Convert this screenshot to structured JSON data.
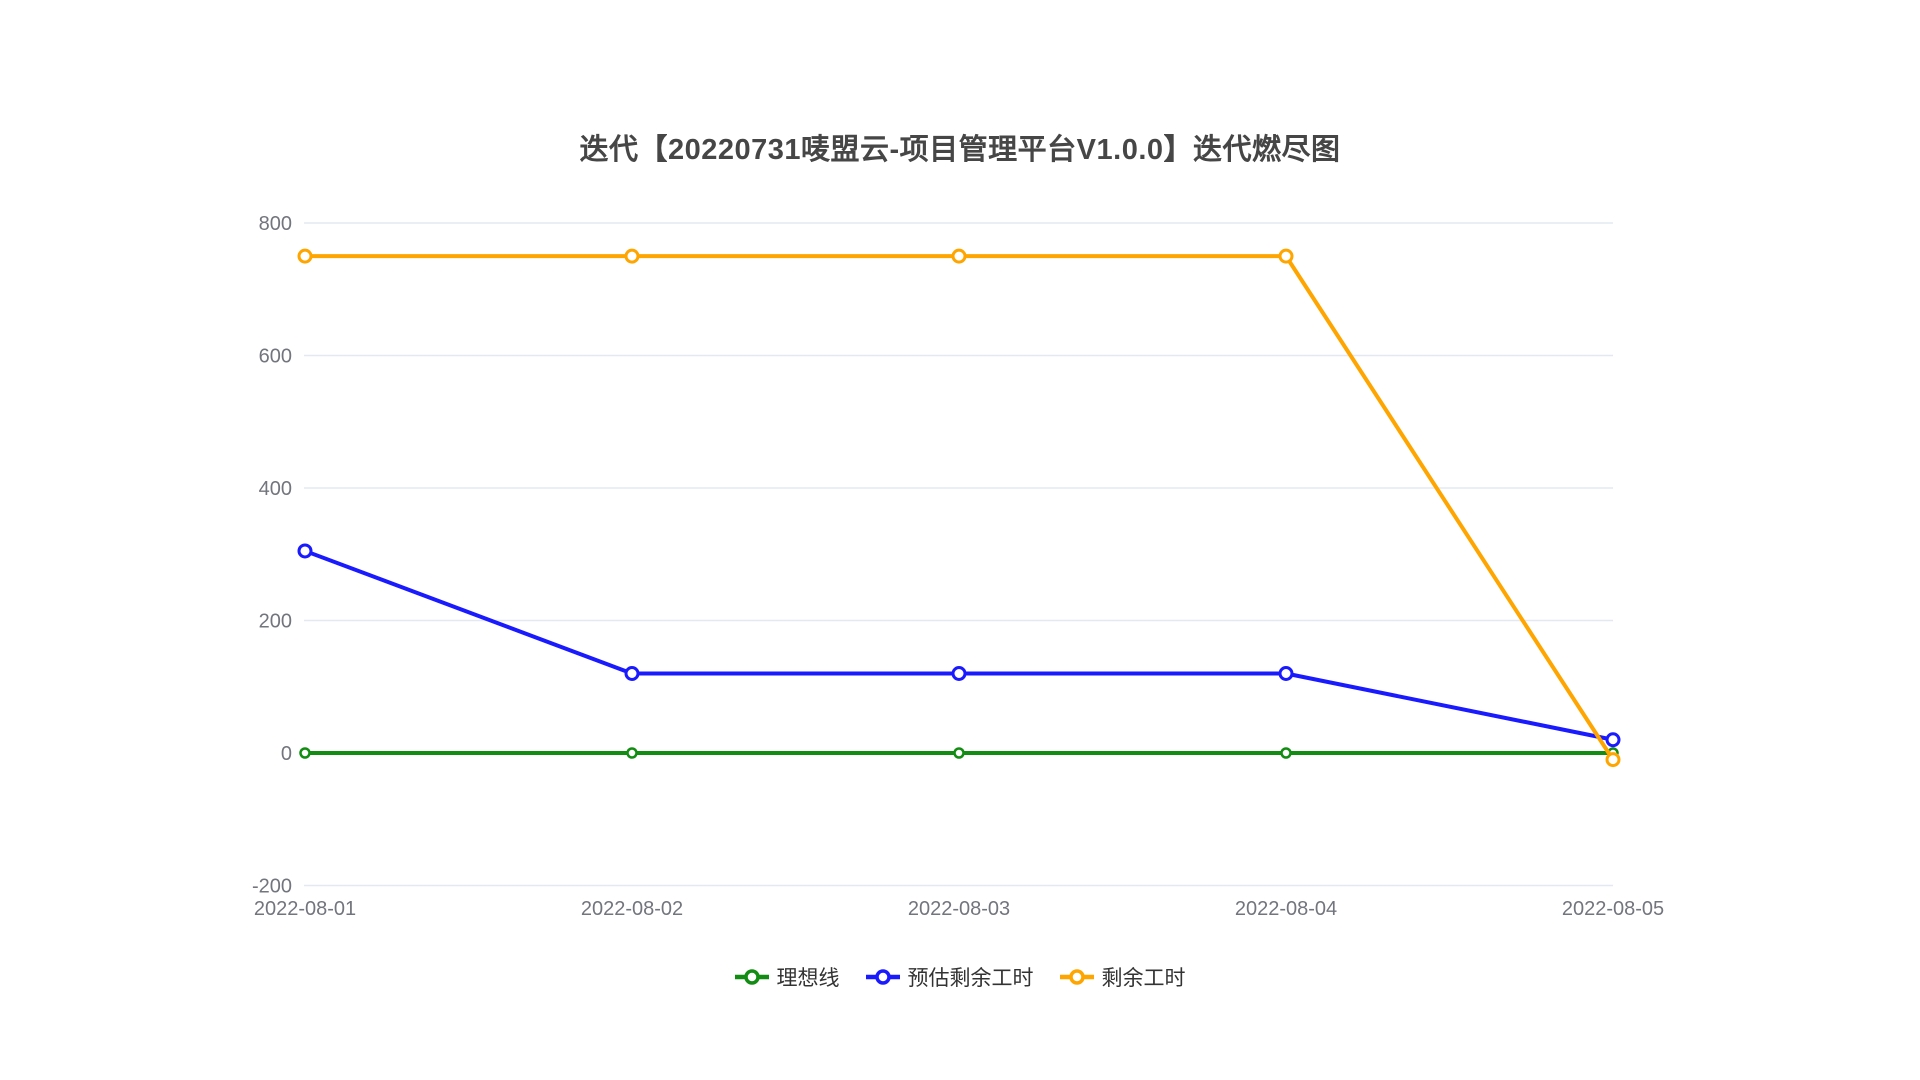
{
  "chart_data": {
    "type": "line",
    "title": "迭代【20220731唛盟云-项目管理平台V1.0.0】迭代燃尽图",
    "title_color": "#464646",
    "categories": [
      "2022-08-01",
      "2022-08-02",
      "2022-08-03",
      "2022-08-04",
      "2022-08-05"
    ],
    "series": [
      {
        "name": "理想线",
        "color": "#128c12",
        "values": [
          0,
          0,
          0,
          0,
          0
        ],
        "marker_radius": 4.5,
        "marker_stroke": 2.5
      },
      {
        "name": "预估剩余工时",
        "color": "#1a1aff",
        "values": [
          305,
          120,
          120,
          120,
          20
        ],
        "marker_radius": 6,
        "marker_stroke": 3
      },
      {
        "name": "剩余工时",
        "color": "#ffa500",
        "values": [
          750,
          750,
          750,
          750,
          -10
        ],
        "marker_radius": 6,
        "marker_stroke": 3
      }
    ],
    "xlabel": "",
    "ylabel": "",
    "ylim": [
      -200,
      800
    ],
    "yticks": [
      800,
      600,
      400,
      200,
      0,
      -200
    ],
    "grid": true,
    "gridline_color": "#e3e8f2",
    "tick_label_color": "#73757e",
    "legend_position": "bottom",
    "legend_text_color": "#333333",
    "marker": "hollow-circle",
    "background": "#ffffff"
  }
}
